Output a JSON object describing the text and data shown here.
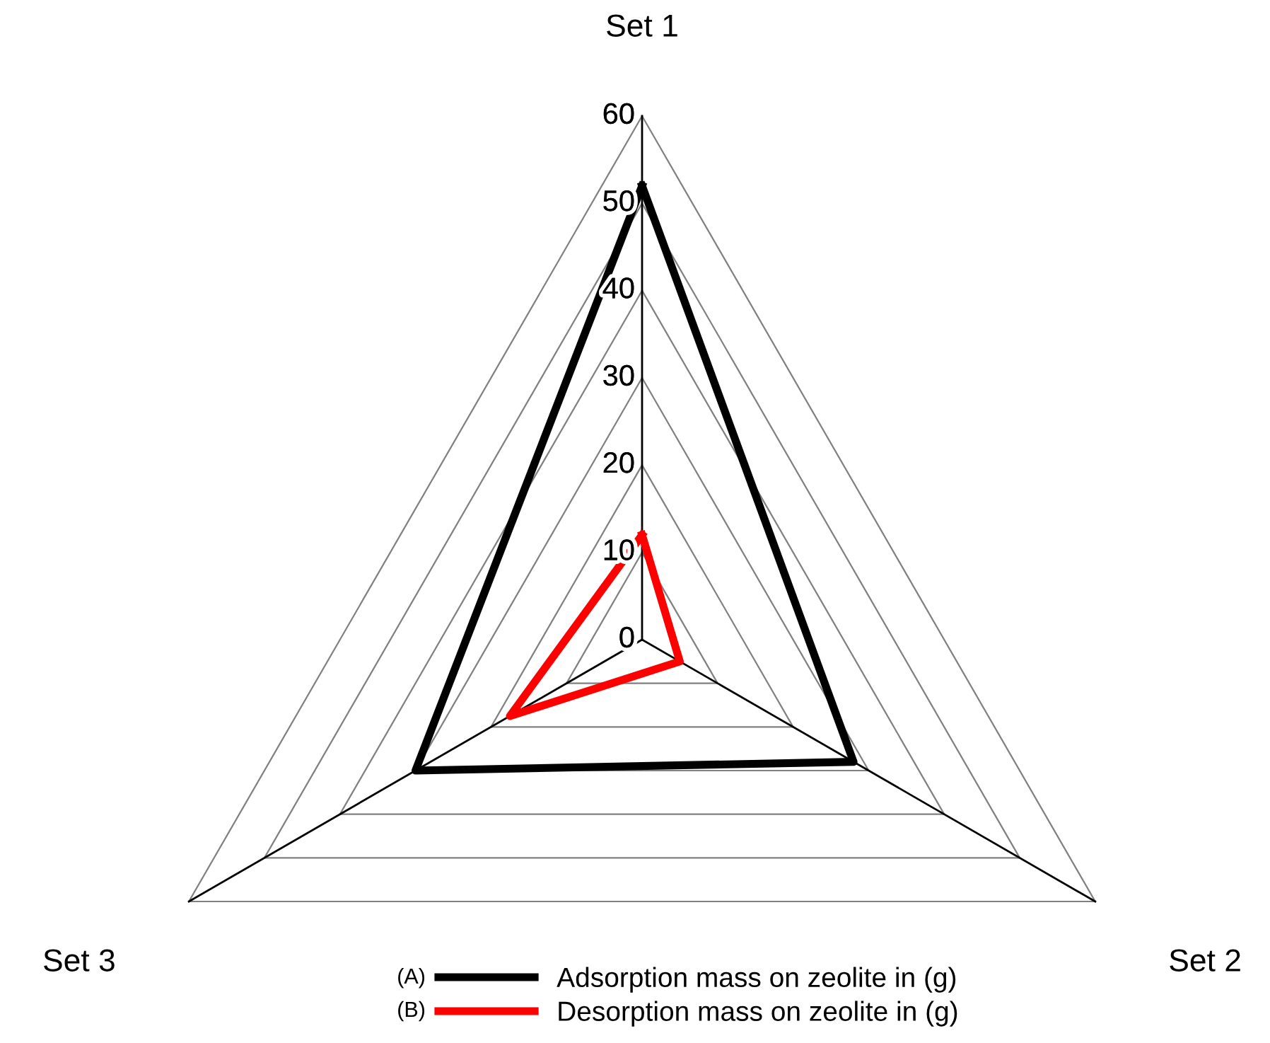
{
  "chart_data": {
    "type": "radar",
    "categories": [
      "Set 1",
      "Set 2",
      "Set 3"
    ],
    "series": [
      {
        "name": "Adsorption mass on zeolite in (g)",
        "color": "#000000",
        "values": [
          52,
          28,
          30
        ]
      },
      {
        "name": "Desorption mass on zeolite in (g)",
        "color": "#ff0000",
        "values": [
          12,
          5,
          17.5
        ]
      }
    ],
    "ylim": [
      0,
      60
    ],
    "yticks": [
      0,
      10,
      20,
      30,
      40,
      50,
      60
    ],
    "grid": true,
    "legend": "bottom",
    "marker": "none",
    "line_style": "solid",
    "annotations": [
      "(A)",
      "(B)"
    ]
  }
}
